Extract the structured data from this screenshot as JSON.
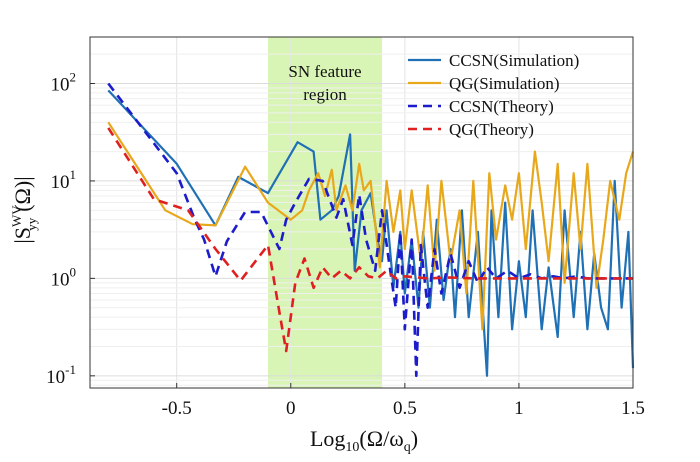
{
  "chart_data": {
    "type": "line",
    "xlabel": "Log10(Ω/ωq)",
    "xlabel_parts": {
      "prefix": "Log",
      "prefix_sub": "10",
      "body": "(Ω/ω",
      "body_sub": "q",
      "suffix": ")"
    },
    "ylabel": "|S_yy^WV(Ω)|",
    "ylabel_parts": {
      "open": "|S",
      "sup": "WV",
      "sub": "yy",
      "close": "(Ω)|"
    },
    "xlim": [
      -0.88,
      1.5
    ],
    "ylim": [
      0.075,
      300
    ],
    "yscale": "log",
    "x_ticks": [
      -0.5,
      0,
      0.5,
      1,
      1.5
    ],
    "x_tick_labels": [
      "-0.5",
      "0",
      "0.5",
      "1",
      "1.5"
    ],
    "y_ticks": [
      {
        "mant": "10",
        "exp": "-1"
      },
      {
        "mant": "10",
        "exp": "0"
      },
      {
        "mant": "10",
        "exp": "1"
      },
      {
        "mant": "10",
        "exp": "2"
      }
    ],
    "y_tick_values": [
      0.1,
      1,
      10,
      100
    ],
    "grid": true,
    "legend_position": "top-right",
    "shaded_region": {
      "x": [
        -0.1,
        0.4
      ],
      "label_lines": [
        "SN feature",
        "region"
      ],
      "color": "#d9f5b5"
    },
    "series": [
      {
        "name": "CCSN(Simulation)",
        "color": "#1f70b4",
        "dash": "solid",
        "x": [
          -0.8,
          -0.5,
          -0.33,
          -0.23,
          -0.1,
          0.03,
          0.1,
          0.13,
          0.18,
          0.21,
          0.26,
          0.28,
          0.31,
          0.35,
          0.38,
          0.4,
          0.42,
          0.45,
          0.48,
          0.5,
          0.53,
          0.56,
          0.58,
          0.61,
          0.64,
          0.67,
          0.7,
          0.72,
          0.75,
          0.78,
          0.82,
          0.86,
          0.88,
          0.91,
          0.94,
          0.97,
          1.0,
          1.03,
          1.06,
          1.1,
          1.13,
          1.17,
          1.2,
          1.24,
          1.27,
          1.3,
          1.33,
          1.36,
          1.39,
          1.42,
          1.45,
          1.48,
          1.5
        ],
        "y": [
          85,
          15,
          3.5,
          11,
          7.5,
          25,
          20,
          4,
          5,
          7,
          30,
          1.2,
          5,
          7.5,
          2.5,
          1.5,
          5,
          0.8,
          3,
          0.7,
          2.5,
          0.5,
          3,
          0.5,
          4,
          0.6,
          2,
          0.4,
          5,
          0.4,
          3,
          0.1,
          5,
          0.4,
          6,
          0.3,
          1.5,
          0.4,
          5,
          0.3,
          1.3,
          0.25,
          5,
          0.4,
          3,
          0.3,
          1.8,
          0.5,
          0.3,
          10,
          0.5,
          3,
          0.12
        ]
      },
      {
        "name": "QG(Simulation)",
        "color": "#e8a81c",
        "dash": "solid",
        "x": [
          -0.8,
          -0.55,
          -0.43,
          -0.33,
          -0.2,
          -0.1,
          0.0,
          0.05,
          0.08,
          0.12,
          0.15,
          0.18,
          0.2,
          0.24,
          0.27,
          0.3,
          0.32,
          0.35,
          0.39,
          0.42,
          0.45,
          0.48,
          0.5,
          0.53,
          0.57,
          0.6,
          0.63,
          0.66,
          0.7,
          0.74,
          0.77,
          0.8,
          0.84,
          0.87,
          0.9,
          0.94,
          0.97,
          1.0,
          1.03,
          1.07,
          1.1,
          1.13,
          1.17,
          1.2,
          1.24,
          1.27,
          1.3,
          1.34,
          1.37,
          1.4,
          1.44,
          1.47,
          1.5
        ],
        "y": [
          40,
          5,
          3.6,
          3.5,
          14,
          6,
          4,
          5,
          8,
          12,
          7,
          13,
          5,
          9,
          5,
          15,
          8,
          10,
          1.3,
          10,
          3,
          8,
          2,
          8,
          1.5,
          9,
          1.2,
          10,
          1.5,
          5,
          0.7,
          10,
          0.3,
          12,
          2.5,
          9,
          4,
          12,
          2,
          20,
          6,
          1.5,
          15,
          0.9,
          12,
          2,
          15,
          0.8,
          2.5,
          10,
          4,
          12,
          20
        ]
      },
      {
        "name": "CCSN(Theory)",
        "color": "#1c1ccc",
        "dash": "dashed",
        "x": [
          -0.8,
          -0.5,
          -0.42,
          -0.38,
          -0.33,
          -0.28,
          -0.2,
          -0.13,
          -0.05,
          -0.02,
          0.02,
          0.08,
          0.14,
          0.2,
          0.23,
          0.27,
          0.3,
          0.33,
          0.37,
          0.4,
          0.43,
          0.46,
          0.48,
          0.5,
          0.53,
          0.55,
          0.57,
          0.6,
          0.63,
          0.66,
          0.7,
          0.74,
          0.78,
          0.82,
          0.86,
          0.9,
          0.95,
          1.0,
          1.05,
          1.1,
          1.15,
          1.2,
          1.25,
          1.3,
          1.35,
          1.4,
          1.45,
          1.5
        ],
        "y": [
          100,
          12,
          4,
          2.5,
          1.05,
          2.4,
          4.8,
          4.8,
          2.0,
          4,
          6,
          10.5,
          10,
          4.2,
          6.5,
          2.2,
          7.2,
          2.5,
          1.2,
          5,
          1.5,
          0.5,
          3,
          0.3,
          2.5,
          0.1,
          2.2,
          0.5,
          2,
          0.7,
          1.8,
          0.8,
          1.5,
          0.9,
          1.3,
          1.0,
          1.2,
          1.0,
          1.1,
          1.0,
          1.05,
          1.0,
          1.05,
          1.0,
          1.0,
          1.0,
          1.0,
          1.0
        ]
      },
      {
        "name": "QG(Theory)",
        "color": "#e02020",
        "dash": "dashed",
        "x": [
          -0.8,
          -0.6,
          -0.45,
          -0.33,
          -0.22,
          -0.1,
          -0.05,
          -0.02,
          0.02,
          0.06,
          0.1,
          0.14,
          0.18,
          0.22,
          0.26,
          0.3,
          0.34,
          0.38,
          0.42,
          0.46,
          0.5,
          0.6,
          0.7,
          0.8,
          0.9,
          1.0,
          1.1,
          1.2,
          1.3,
          1.4,
          1.5
        ],
        "y": [
          35,
          6.5,
          5,
          2,
          0.95,
          2.2,
          0.45,
          0.18,
          0.9,
          1.6,
          0.8,
          1.3,
          1.0,
          1.2,
          1.0,
          1.3,
          1.05,
          1.0,
          1.2,
          1.0,
          1.05,
          1.0,
          1.02,
          1.0,
          1.0,
          1.0,
          1.0,
          1.0,
          1.0,
          1.0,
          1.0
        ]
      }
    ]
  }
}
